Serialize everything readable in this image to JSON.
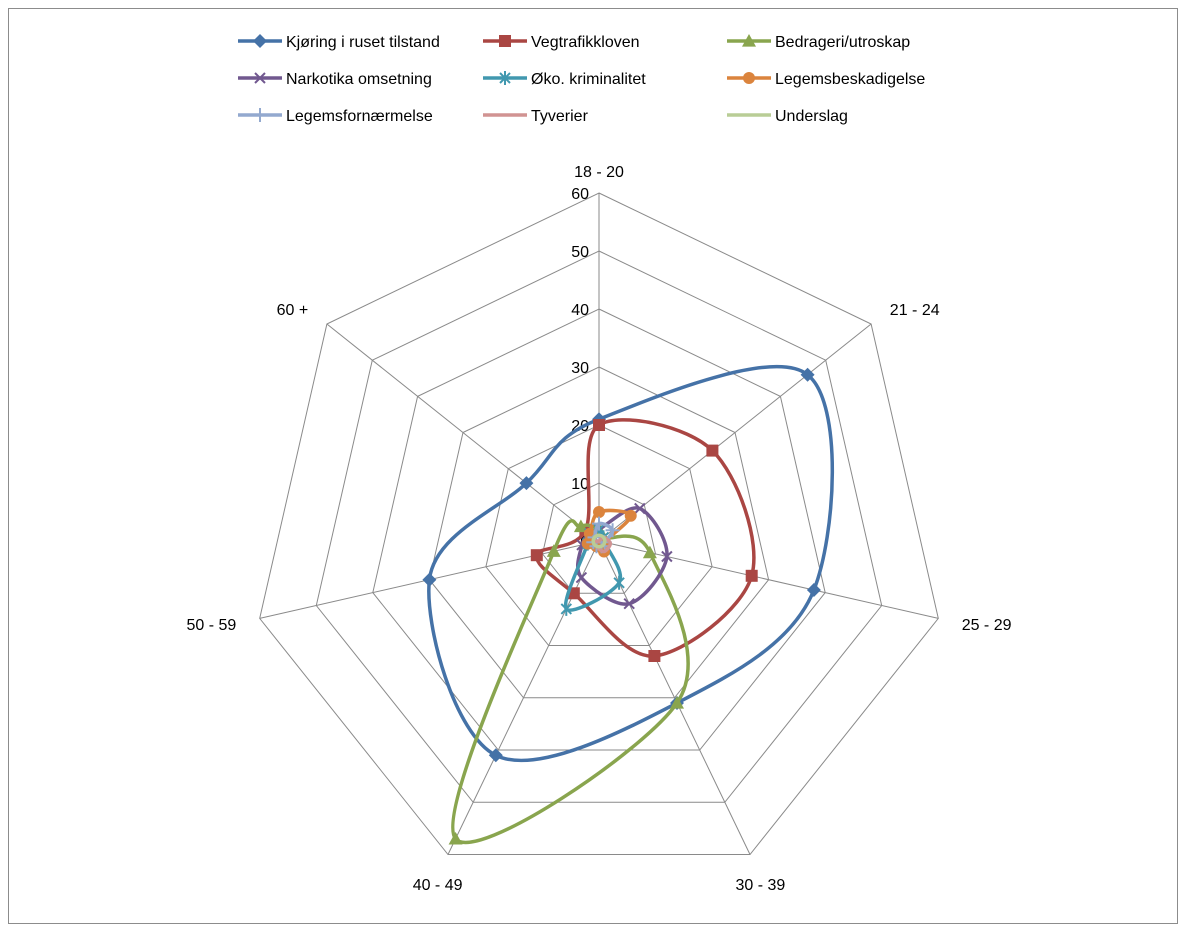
{
  "chart_data": {
    "type": "radar",
    "title": "",
    "categories": [
      "18 - 20",
      "21 - 24",
      "25 - 29",
      "30 - 39",
      "40 - 49",
      "50 - 59",
      "60 +"
    ],
    "rlim": [
      0,
      60
    ],
    "ticks": [
      "0",
      "10",
      "20",
      "30",
      "40",
      "50",
      "60"
    ],
    "tick_values": [
      0,
      10,
      20,
      30,
      40,
      50,
      60
    ],
    "grid": true,
    "legend_position": "top",
    "series": [
      {
        "name": "Kjøring i ruset tilstand",
        "color": "#4572A7",
        "marker": "diamond",
        "values": [
          21,
          46,
          38,
          31,
          41,
          30,
          16
        ]
      },
      {
        "name": "Vegtrafikkloven",
        "color": "#AA4643",
        "marker": "square",
        "values": [
          20,
          25,
          27,
          22,
          10,
          11,
          3
        ]
      },
      {
        "name": "Bedrageri/utroskap",
        "color": "#89A54E",
        "marker": "triangle",
        "values": [
          2,
          1,
          9,
          31,
          57,
          8,
          4
        ]
      },
      {
        "name": "Narkotika omsetning",
        "color": "#71588F",
        "marker": "x",
        "values": [
          2,
          9,
          12,
          12,
          7,
          3,
          2
        ]
      },
      {
        "name": "Øko. kriminalitet",
        "color": "#4198AF",
        "marker": "star",
        "values": [
          2,
          1,
          1,
          8,
          13,
          2,
          2
        ]
      },
      {
        "name": "Legemsbeskadigelse",
        "color": "#DB843D",
        "marker": "circle",
        "values": [
          5,
          7,
          1,
          2,
          1,
          2,
          2
        ]
      },
      {
        "name": "Legemsfornærmelse",
        "color": "#93A9CF",
        "marker": "plus",
        "values": [
          3,
          3,
          1,
          1,
          1,
          1,
          1
        ]
      },
      {
        "name": "Tyverier",
        "color": "#D19392",
        "marker": "none",
        "values": [
          0,
          1,
          2,
          2,
          1,
          1,
          0
        ]
      },
      {
        "name": "Underslag",
        "color": "#B9CD96",
        "marker": "none",
        "values": [
          1,
          1,
          1,
          1,
          1,
          1,
          1
        ]
      }
    ]
  }
}
